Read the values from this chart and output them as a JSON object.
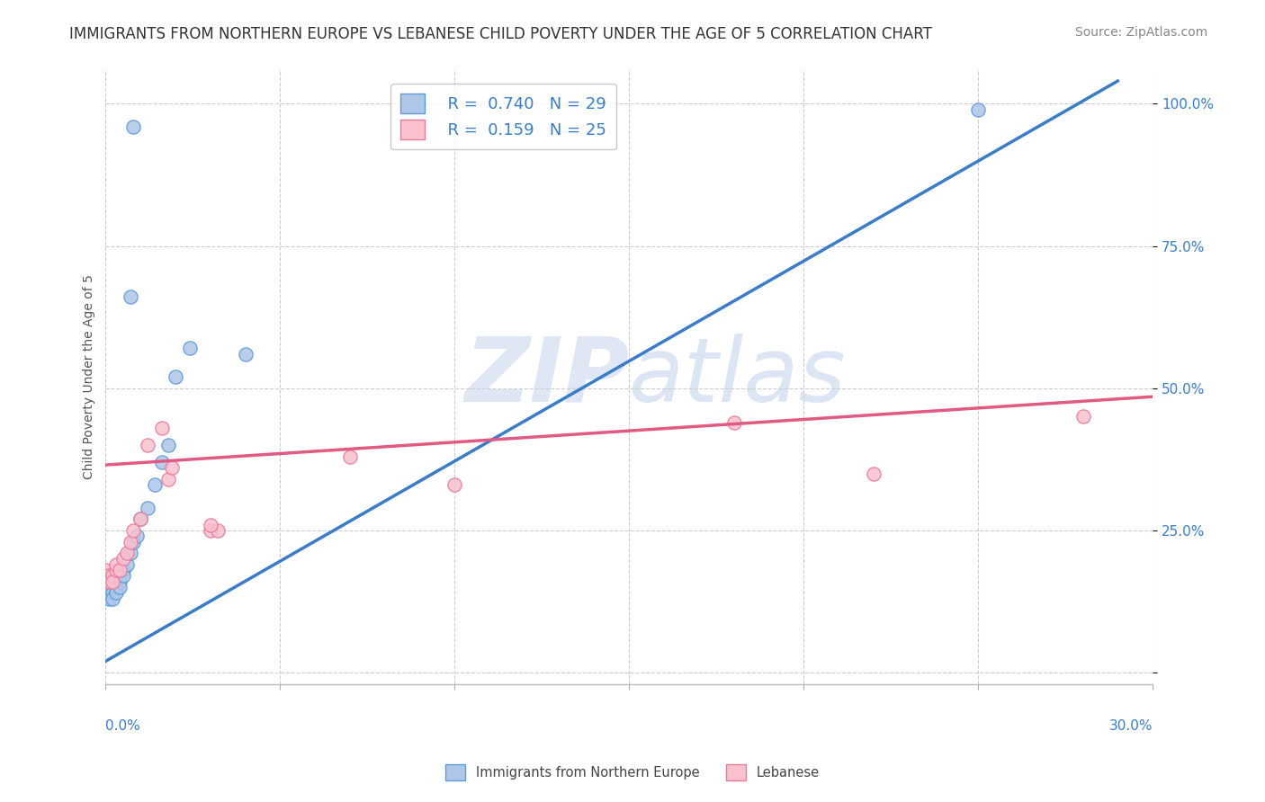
{
  "title": "IMMIGRANTS FROM NORTHERN EUROPE VS LEBANESE CHILD POVERTY UNDER THE AGE OF 5 CORRELATION CHART",
  "source": "Source: ZipAtlas.com",
  "ylabel": "Child Poverty Under the Age of 5",
  "ytick_values": [
    0.0,
    0.25,
    0.5,
    0.75,
    1.0
  ],
  "ytick_labels": [
    "",
    "25.0%",
    "50.0%",
    "75.0%",
    "100.0%"
  ],
  "xmin": 0.0,
  "xmax": 0.3,
  "ymin": -0.02,
  "ymax": 1.06,
  "blue_R": "0.740",
  "blue_N": "29",
  "pink_R": "0.159",
  "pink_N": "25",
  "blue_scatter": [
    [
      0.0,
      0.17
    ],
    [
      0.001,
      0.16
    ],
    [
      0.001,
      0.15
    ],
    [
      0.001,
      0.14
    ],
    [
      0.001,
      0.13
    ],
    [
      0.002,
      0.16
    ],
    [
      0.002,
      0.14
    ],
    [
      0.002,
      0.13
    ],
    [
      0.003,
      0.15
    ],
    [
      0.003,
      0.14
    ],
    [
      0.004,
      0.16
    ],
    [
      0.004,
      0.15
    ],
    [
      0.005,
      0.18
    ],
    [
      0.005,
      0.17
    ],
    [
      0.006,
      0.19
    ],
    [
      0.007,
      0.21
    ],
    [
      0.008,
      0.23
    ],
    [
      0.009,
      0.24
    ],
    [
      0.01,
      0.27
    ],
    [
      0.012,
      0.29
    ],
    [
      0.014,
      0.33
    ],
    [
      0.016,
      0.37
    ],
    [
      0.018,
      0.4
    ],
    [
      0.02,
      0.52
    ],
    [
      0.024,
      0.57
    ],
    [
      0.007,
      0.66
    ],
    [
      0.008,
      0.96
    ],
    [
      0.04,
      0.56
    ],
    [
      0.25,
      0.99
    ]
  ],
  "pink_scatter": [
    [
      0.0,
      0.18
    ],
    [
      0.001,
      0.17
    ],
    [
      0.001,
      0.16
    ],
    [
      0.002,
      0.17
    ],
    [
      0.002,
      0.16
    ],
    [
      0.003,
      0.18
    ],
    [
      0.003,
      0.19
    ],
    [
      0.004,
      0.18
    ],
    [
      0.005,
      0.2
    ],
    [
      0.006,
      0.21
    ],
    [
      0.007,
      0.23
    ],
    [
      0.008,
      0.25
    ],
    [
      0.01,
      0.27
    ],
    [
      0.012,
      0.4
    ],
    [
      0.016,
      0.43
    ],
    [
      0.018,
      0.34
    ],
    [
      0.019,
      0.36
    ],
    [
      0.03,
      0.25
    ],
    [
      0.032,
      0.25
    ],
    [
      0.07,
      0.38
    ],
    [
      0.1,
      0.33
    ],
    [
      0.18,
      0.44
    ],
    [
      0.22,
      0.35
    ],
    [
      0.28,
      0.45
    ],
    [
      0.03,
      0.26
    ]
  ],
  "blue_line_x": [
    0.0,
    0.29
  ],
  "blue_line_y": [
    0.02,
    1.04
  ],
  "pink_line_x": [
    0.0,
    0.3
  ],
  "pink_line_y": [
    0.365,
    0.485
  ],
  "blue_scatter_facecolor": "#AEC6E8",
  "blue_scatter_edgecolor": "#5B9BD5",
  "pink_scatter_facecolor": "#F9C0CE",
  "pink_scatter_edgecolor": "#E87A9A",
  "blue_line_color": "#3A7CC8",
  "pink_line_color": "#E05A82",
  "background_color": "#FFFFFF",
  "grid_color": "#CCCCCC",
  "watermark_color": "#D0DDEF",
  "title_fontsize": 12,
  "source_fontsize": 10,
  "axis_label_fontsize": 10,
  "tick_fontsize": 11,
  "legend_fontsize": 13
}
